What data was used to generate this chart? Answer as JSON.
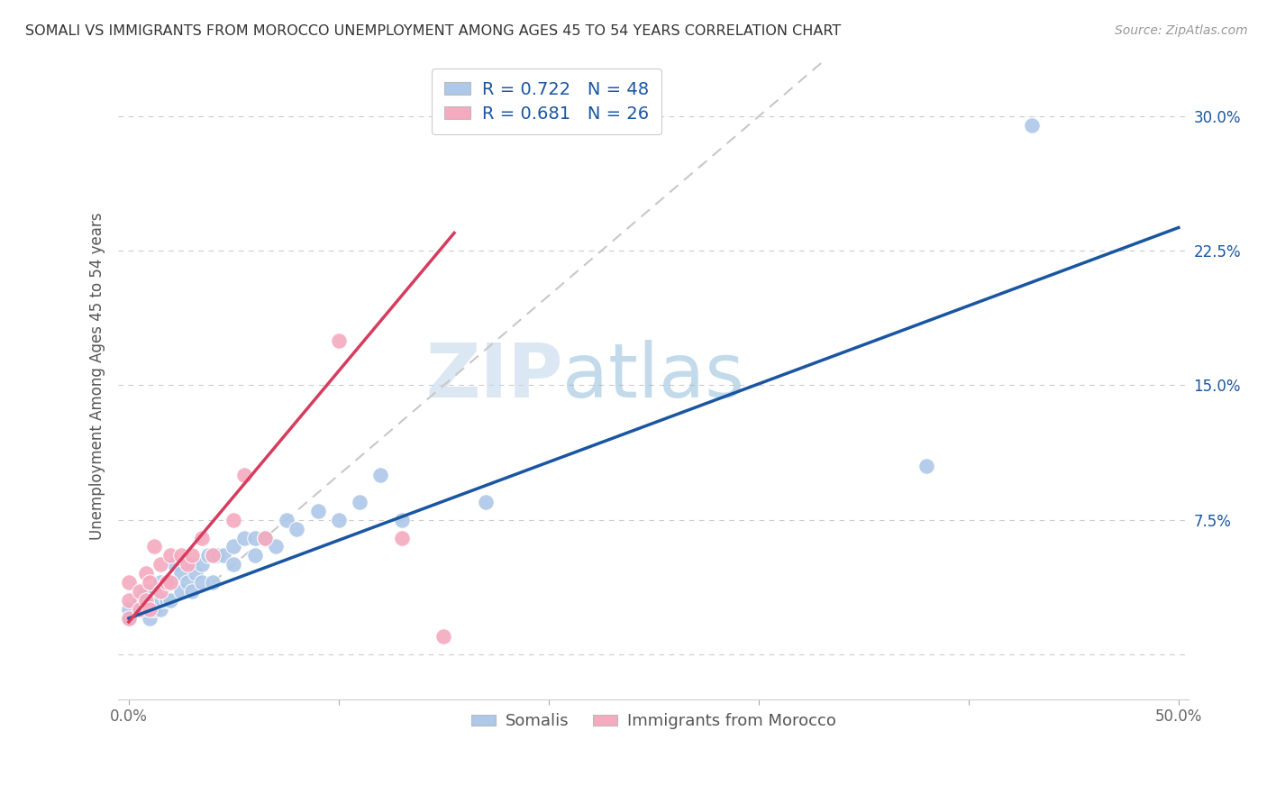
{
  "title": "SOMALI VS IMMIGRANTS FROM MOROCCO UNEMPLOYMENT AMONG AGES 45 TO 54 YEARS CORRELATION CHART",
  "source": "Source: ZipAtlas.com",
  "ylabel": "Unemployment Among Ages 45 to 54 years",
  "xlim": [
    -0.005,
    0.505
  ],
  "ylim": [
    -0.025,
    0.335
  ],
  "xticks": [
    0.0,
    0.1,
    0.2,
    0.3,
    0.4,
    0.5
  ],
  "xticklabels": [
    "0.0%",
    "",
    "",
    "",
    "",
    "50.0%"
  ],
  "yticks": [
    0.0,
    0.075,
    0.15,
    0.225,
    0.3
  ],
  "yticklabels": [
    "",
    "7.5%",
    "15.0%",
    "22.5%",
    "30.0%"
  ],
  "somali_R": 0.722,
  "somali_N": 48,
  "morocco_R": 0.681,
  "morocco_N": 26,
  "somali_color": "#adc8e8",
  "somali_line_color": "#1a56a0",
  "morocco_color": "#f5aabf",
  "morocco_line_color": "#d63c5e",
  "ref_line_color": "#c8c8c8",
  "watermark_zip": "ZIP",
  "watermark_atlas": "atlas",
  "background_color": "#ffffff",
  "grid_color": "#cccccc",
  "somali_x": [
    0.0,
    0.0,
    0.005,
    0.005,
    0.008,
    0.008,
    0.01,
    0.01,
    0.012,
    0.012,
    0.015,
    0.015,
    0.015,
    0.018,
    0.018,
    0.02,
    0.02,
    0.022,
    0.025,
    0.025,
    0.028,
    0.03,
    0.03,
    0.032,
    0.035,
    0.035,
    0.038,
    0.04,
    0.04,
    0.042,
    0.045,
    0.05,
    0.05,
    0.055,
    0.06,
    0.06,
    0.065,
    0.07,
    0.075,
    0.08,
    0.09,
    0.1,
    0.11,
    0.12,
    0.13,
    0.17,
    0.38,
    0.43
  ],
  "somali_y": [
    0.02,
    0.025,
    0.025,
    0.03,
    0.03,
    0.035,
    0.02,
    0.03,
    0.025,
    0.035,
    0.025,
    0.03,
    0.04,
    0.03,
    0.04,
    0.03,
    0.04,
    0.05,
    0.035,
    0.045,
    0.04,
    0.035,
    0.05,
    0.045,
    0.04,
    0.05,
    0.055,
    0.04,
    0.055,
    0.055,
    0.055,
    0.06,
    0.05,
    0.065,
    0.055,
    0.065,
    0.065,
    0.06,
    0.075,
    0.07,
    0.08,
    0.075,
    0.085,
    0.1,
    0.075,
    0.085,
    0.105,
    0.295
  ],
  "morocco_x": [
    0.0,
    0.0,
    0.0,
    0.005,
    0.005,
    0.008,
    0.008,
    0.01,
    0.01,
    0.012,
    0.015,
    0.015,
    0.018,
    0.02,
    0.02,
    0.025,
    0.028,
    0.03,
    0.035,
    0.04,
    0.05,
    0.055,
    0.065,
    0.1,
    0.13,
    0.15
  ],
  "morocco_y": [
    0.02,
    0.03,
    0.04,
    0.025,
    0.035,
    0.03,
    0.045,
    0.025,
    0.04,
    0.06,
    0.035,
    0.05,
    0.04,
    0.04,
    0.055,
    0.055,
    0.05,
    0.055,
    0.065,
    0.055,
    0.075,
    0.1,
    0.065,
    0.175,
    0.065,
    0.01
  ],
  "somali_reg": [
    0.0,
    0.02,
    0.5,
    0.238
  ],
  "morocco_reg": [
    0.0,
    0.018,
    0.155,
    0.235
  ],
  "ref_line": [
    0.04,
    0.04,
    0.33,
    0.33
  ]
}
